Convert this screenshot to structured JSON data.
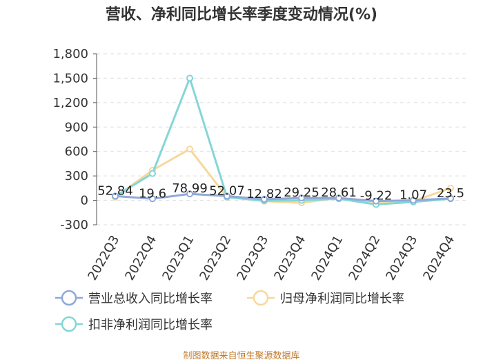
{
  "chart_data": {
    "type": "line",
    "title": "营收、净利同比增长率季度变动情况(%)",
    "categories": [
      "2022Q3",
      "2022Q4",
      "2023Q1",
      "2023Q2",
      "2023Q3",
      "2023Q4",
      "2024Q1",
      "2024Q2",
      "2024Q3",
      "2024Q4"
    ],
    "yticks": [
      "-300",
      "0",
      "300",
      "600",
      "900",
      "1,200",
      "1,500",
      "1,800"
    ],
    "ylim": [
      -300,
      1800
    ],
    "grid": "horizontal dashed",
    "legend_position": "bottom",
    "series": [
      {
        "name": "营业总收入同比增长率",
        "color": "#8fa8d8",
        "values": [
          52.84,
          19.6,
          78.99,
          52.07,
          12.82,
          29.25,
          28.61,
          -9.22,
          1.07,
          23.5
        ],
        "labels": [
          "52.84",
          "19.6",
          "78.99",
          "52.07",
          "12.82",
          "29.25",
          "28.61",
          "-9.22",
          "1.07",
          "23.5"
        ]
      },
      {
        "name": "归母净利润同比增长率",
        "color": "#f7d89a",
        "values": [
          40,
          370,
          630,
          40,
          -10,
          -30,
          30,
          -20,
          -10,
          150
        ]
      },
      {
        "name": "扣非净利润同比增长率",
        "color": "#85d6d6",
        "values": [
          50,
          330,
          1500,
          40,
          -5,
          0,
          20,
          -50,
          -20,
          20
        ]
      }
    ]
  },
  "source": "制图数据来自恒生聚源数据库"
}
